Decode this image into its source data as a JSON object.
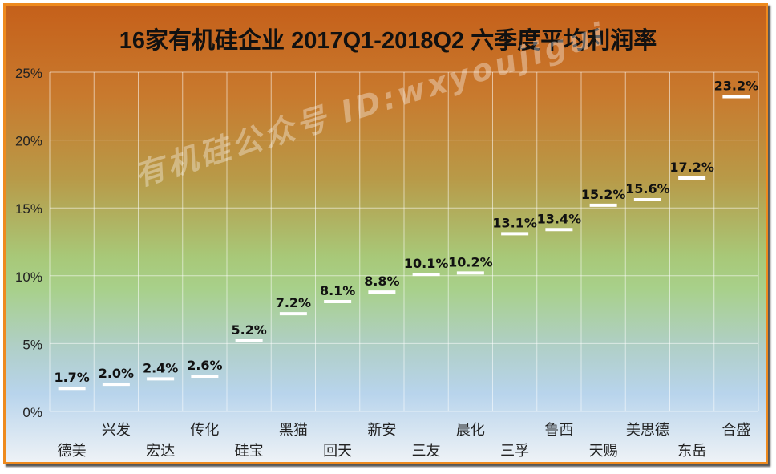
{
  "chart_data": {
    "type": "scatter",
    "title": "16家有机硅企业 2017Q1-2018Q2  六季度平均利润率",
    "categories": [
      "德美",
      "兴发",
      "宏达",
      "传化",
      "硅宝",
      "黑猫",
      "回天",
      "新安",
      "三友",
      "晨化",
      "三孚",
      "鲁西",
      "天赐",
      "美思德",
      "东岳",
      "合盛"
    ],
    "values": [
      1.7,
      2.0,
      2.4,
      2.6,
      5.2,
      7.2,
      8.1,
      8.8,
      10.1,
      10.2,
      13.1,
      13.4,
      15.2,
      15.6,
      17.2,
      23.2
    ],
    "data_labels": [
      "1.7%",
      "2.0%",
      "2.4%",
      "2.6%",
      "5.2%",
      "7.2%",
      "8.1%",
      "8.8%",
      "10.1%",
      "10.2%",
      "13.1%",
      "13.4%",
      "15.2%",
      "15.6%",
      "17.2%",
      "23.2%"
    ],
    "y_ticks": [
      "0%",
      "5%",
      "10%",
      "15%",
      "20%",
      "25%"
    ],
    "ylim": [
      0,
      25
    ],
    "xlabel": "",
    "ylabel": "",
    "grid": true,
    "legend": "none",
    "marker_color": "#ffffff",
    "colors": {
      "frame": "#ee8a1e",
      "top": "#c5601a",
      "middle": "#a8d08a",
      "bottom": "#eef2f6"
    }
  },
  "watermark": "有机硅公众号 ID:wxyoujigui"
}
